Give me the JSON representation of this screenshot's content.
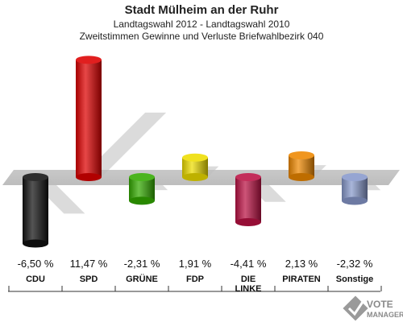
{
  "chart_data": {
    "type": "bar",
    "title": "Stadt Mülheim an der Ruhr",
    "subtitle": "Landtagswahl 2012 - Landtagswahl 2010",
    "subtitle2": "Zweitstimmen Gewinne und Verluste Briefwahlbezirk 040",
    "categories": [
      "CDU",
      "SPD",
      "GRÜNE",
      "FDP",
      "DIE LINKE",
      "PIRATEN",
      "Sonstige"
    ],
    "category_lines": [
      [
        "CDU"
      ],
      [
        "SPD"
      ],
      [
        "GRÜNE"
      ],
      [
        "FDP"
      ],
      [
        "DIE",
        "LINKE"
      ],
      [
        "PIRATEN"
      ],
      [
        "Sonstige"
      ]
    ],
    "values": [
      -6.5,
      11.47,
      -2.31,
      1.91,
      -4.41,
      2.13,
      -2.32
    ],
    "value_labels": [
      "-6,50 %",
      "11,47 %",
      "-2,31 %",
      "1,91 %",
      "-4,41 %",
      "2,13 %",
      "-2,32 %"
    ],
    "colors": [
      "#111111",
      "#dd0000",
      "#33aa00",
      "#eedd00",
      "#bb1144",
      "#ee8800",
      "#8899cc"
    ],
    "xlabel": "",
    "ylabel": ""
  },
  "logo": {
    "line1": "VOTE",
    "line2": "MANAGER"
  }
}
